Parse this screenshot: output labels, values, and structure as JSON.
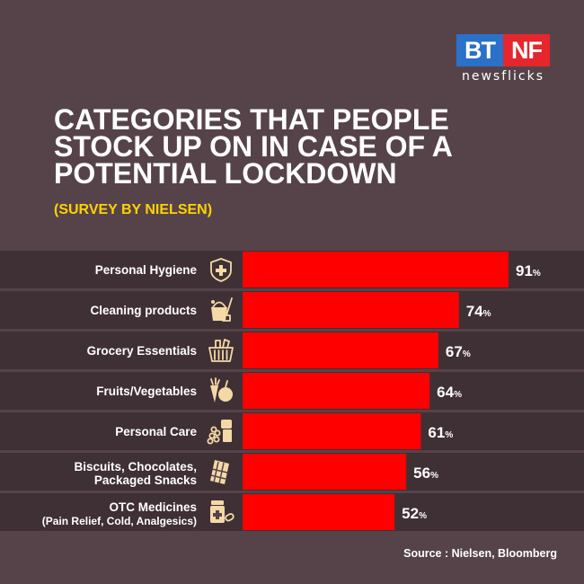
{
  "logo": {
    "bt": "BT",
    "nf": "NF",
    "sub": "newsflicks"
  },
  "header": {
    "title": "CATEGORIES THAT PEOPLE STOCK UP ON IN CASE OF A POTENTIAL LOCKDOWN",
    "subtitle": "(SURVEY BY NIELSEN)"
  },
  "source": "Source : Nielsen, Bloomberg",
  "chart_data": {
    "type": "bar",
    "orientation": "horizontal",
    "categories": [
      [
        "Personal Hygiene"
      ],
      [
        "Cleaning products"
      ],
      [
        "Grocery Essentials"
      ],
      [
        "Fruits/Vegetables"
      ],
      [
        "Personal Care"
      ],
      [
        "Biscuits, Chocolates,",
        "Packaged Snacks"
      ],
      [
        "OTC Medicines",
        "(Pain Relief, Cold, Analgesics)"
      ]
    ],
    "icons": [
      "shield-icon",
      "cleaning-bucket-icon",
      "grocery-basket-icon",
      "fruits-vegetables-icon",
      "personal-care-icon",
      "chocolate-bar-icon",
      "medicine-icon"
    ],
    "values": [
      91,
      74,
      67,
      64,
      61,
      56,
      52
    ],
    "value_suffix": "%",
    "xlim": [
      0,
      100
    ],
    "bar_color": "#ff0000",
    "row_color": "#3f3035",
    "icon_color": "#f4d9a6"
  }
}
